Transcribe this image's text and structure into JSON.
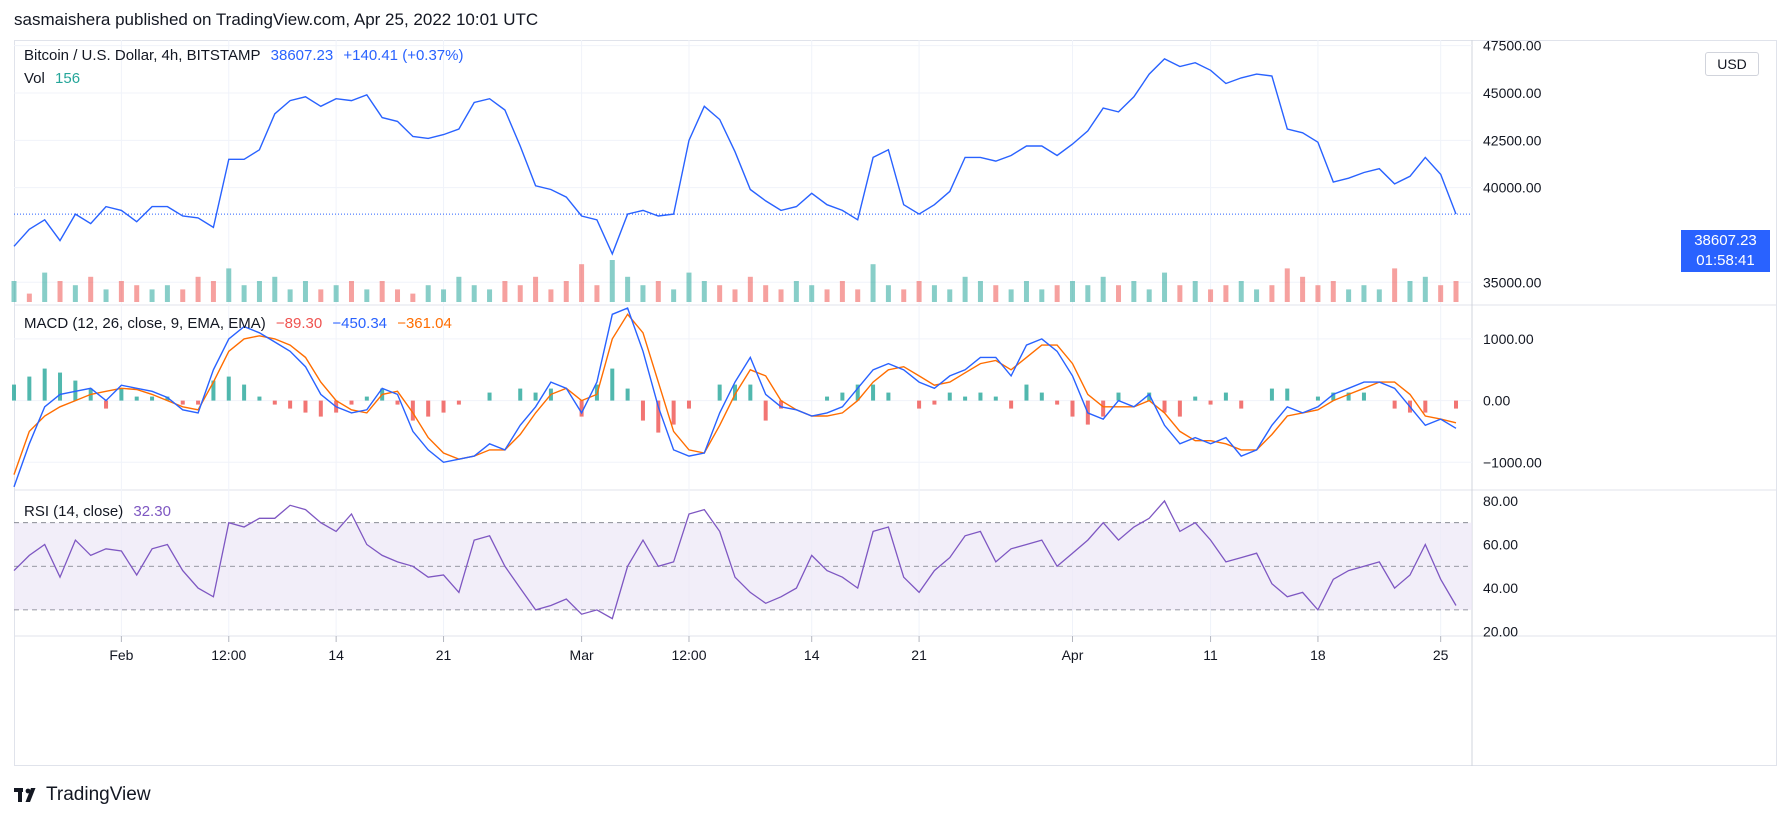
{
  "header": {
    "text": "sasmaishera published on TradingView.com, Apr 25, 2022 10:01 UTC"
  },
  "legend_price": {
    "symbol": "Bitcoin / U.S. Dollar, 4h, BITSTAMP",
    "last": "38607.23",
    "change": "+140.41 (+0.37%)",
    "vol_label": "Vol",
    "vol_value": "156"
  },
  "legend_macd": {
    "label": "MACD (12, 26, close, 9, EMA, EMA)",
    "hist": "−89.30",
    "macd": "−450.34",
    "signal": "−361.04"
  },
  "legend_rsi": {
    "label": "RSI (14, close)",
    "value": "32.30"
  },
  "currency_badge": "USD",
  "price_tag": {
    "price": "38607.23",
    "countdown": "01:58:41"
  },
  "footer": {
    "brand": "TradingView"
  },
  "colors": {
    "price_line": "#2962ff",
    "macd_line": "#2962ff",
    "signal_line": "#ff6d00",
    "hist_up": "#26a69a",
    "hist_down": "#ef5350",
    "rsi_line": "#7e57c2",
    "rsi_band": "#ede7f6",
    "vol_up": "#26a69a",
    "vol_down": "#ef5350",
    "grid": "#f0f3fa",
    "axis_text": "#131722"
  },
  "chart_data": [
    {
      "type": "line",
      "title": "Bitcoin / U.S. Dollar, 4h, BITSTAMP",
      "ylim": [
        33800,
        47800
      ],
      "y_ticks": [
        "35000.00",
        "40000.00",
        "42500.00",
        "45000.00",
        "47500.00"
      ],
      "y_tick_values": [
        35000,
        40000,
        42500,
        45000,
        47500
      ],
      "x_ticks": [
        "Feb",
        "12:00",
        "14",
        "21",
        "Mar",
        "12:00",
        "14",
        "21",
        "Apr",
        "11",
        "18",
        "25"
      ],
      "x_tick_index": [
        7,
        14,
        21,
        28,
        37,
        44,
        52,
        59,
        69,
        78,
        85,
        93
      ],
      "n_points": 95,
      "close": [
        36900,
        37800,
        38300,
        37200,
        38600,
        38100,
        39000,
        38800,
        38200,
        39000,
        39000,
        38500,
        38400,
        37900,
        41500,
        41500,
        42000,
        43900,
        44600,
        44800,
        44300,
        44700,
        44600,
        44900,
        43700,
        43500,
        42700,
        42600,
        42800,
        43100,
        44500,
        44700,
        44100,
        42200,
        40100,
        39900,
        39500,
        38500,
        38300,
        36500,
        38600,
        38800,
        38500,
        38600,
        42500,
        44300,
        43600,
        41900,
        39900,
        39300,
        38800,
        39000,
        39700,
        39100,
        38800,
        38300,
        41600,
        42000,
        39100,
        38600,
        39100,
        39800,
        41600,
        41600,
        41400,
        41700,
        42200,
        42200,
        41700,
        42300,
        43000,
        44200,
        44000,
        44800,
        46000,
        46800,
        46400,
        46600,
        46200,
        45500,
        45800,
        46000,
        45900,
        43100,
        42900,
        42400,
        40300,
        40500,
        40800,
        41000,
        40200,
        40600,
        41600,
        40700,
        38600
      ],
      "volume_rel": [
        0.5,
        0.2,
        0.7,
        0.5,
        0.4,
        0.6,
        0.3,
        0.5,
        0.4,
        0.3,
        0.4,
        0.3,
        0.6,
        0.5,
        0.8,
        0.4,
        0.5,
        0.6,
        0.3,
        0.5,
        0.3,
        0.4,
        0.5,
        0.3,
        0.5,
        0.3,
        0.2,
        0.4,
        0.3,
        0.6,
        0.4,
        0.3,
        0.5,
        0.4,
        0.6,
        0.3,
        0.5,
        0.9,
        0.4,
        1.0,
        0.6,
        0.4,
        0.5,
        0.3,
        0.7,
        0.5,
        0.4,
        0.3,
        0.6,
        0.4,
        0.3,
        0.5,
        0.4,
        0.3,
        0.5,
        0.3,
        0.9,
        0.4,
        0.3,
        0.5,
        0.4,
        0.3,
        0.6,
        0.5,
        0.4,
        0.3,
        0.5,
        0.3,
        0.4,
        0.5,
        0.4,
        0.6,
        0.4,
        0.5,
        0.3,
        0.7,
        0.4,
        0.5,
        0.3,
        0.4,
        0.5,
        0.3,
        0.4,
        0.8,
        0.6,
        0.4,
        0.5,
        0.3,
        0.4,
        0.3,
        0.8,
        0.5,
        0.6,
        0.4,
        0.5
      ],
      "volume_up": [
        1,
        0,
        1,
        0,
        1,
        0,
        1,
        0,
        0,
        1,
        1,
        0,
        0,
        0,
        1,
        1,
        1,
        1,
        1,
        1,
        0,
        1,
        0,
        1,
        0,
        0,
        0,
        1,
        1,
        1,
        1,
        1,
        0,
        0,
        0,
        0,
        0,
        0,
        0,
        1,
        1,
        1,
        0,
        1,
        1,
        1,
        0,
        0,
        0,
        0,
        0,
        1,
        1,
        0,
        0,
        0,
        1,
        1,
        0,
        0,
        1,
        1,
        1,
        1,
        0,
        1,
        1,
        1,
        0,
        1,
        1,
        1,
        0,
        1,
        1,
        1,
        0,
        1,
        0,
        0,
        1,
        1,
        0,
        0,
        0,
        0,
        0,
        1,
        1,
        1,
        0,
        1,
        1,
        0,
        0
      ]
    },
    {
      "type": "line",
      "title": "MACD (12, 26, close, 9, EMA, EMA)",
      "ylim": [
        -1450,
        1550
      ],
      "y_ticks": [
        "1000.00",
        "0.00",
        "−1000.00"
      ],
      "y_tick_values": [
        1000,
        0,
        -1000
      ],
      "macd": [
        -1400,
        -700,
        -100,
        100,
        150,
        200,
        0,
        250,
        200,
        150,
        50,
        -150,
        -200,
        500,
        1000,
        1200,
        1100,
        950,
        800,
        550,
        100,
        -100,
        -200,
        -150,
        200,
        100,
        -500,
        -800,
        -1000,
        -950,
        -900,
        -700,
        -800,
        -400,
        -100,
        300,
        200,
        -200,
        300,
        1400,
        1500,
        800,
        -100,
        -800,
        -900,
        -850,
        -200,
        300,
        700,
        100,
        -100,
        -150,
        -250,
        -200,
        -100,
        200,
        500,
        600,
        500,
        300,
        200,
        400,
        500,
        700,
        700,
        400,
        900,
        1000,
        800,
        400,
        -200,
        -300,
        0,
        -100,
        100,
        -400,
        -700,
        -600,
        -700,
        -600,
        -900,
        -800,
        -400,
        -100,
        -200,
        -100,
        100,
        200,
        300,
        300,
        200,
        -100,
        -400,
        -300,
        -450
      ],
      "signal": [
        -1200,
        -500,
        -250,
        -100,
        0,
        100,
        150,
        200,
        180,
        100,
        0,
        -100,
        -150,
        300,
        800,
        1000,
        1050,
        1000,
        900,
        700,
        300,
        0,
        -150,
        -200,
        100,
        150,
        -200,
        -600,
        -850,
        -950,
        -900,
        -800,
        -800,
        -550,
        -200,
        100,
        200,
        0,
        100,
        1000,
        1400,
        1100,
        300,
        -500,
        -800,
        -850,
        -400,
        100,
        500,
        400,
        0,
        -150,
        -250,
        -250,
        -200,
        0,
        300,
        500,
        550,
        400,
        250,
        300,
        450,
        600,
        650,
        500,
        700,
        900,
        900,
        600,
        100,
        -100,
        -100,
        -100,
        0,
        -200,
        -500,
        -650,
        -650,
        -700,
        -800,
        -800,
        -550,
        -250,
        -200,
        -150,
        0,
        100,
        200,
        300,
        300,
        100,
        -250,
        -300,
        -361
      ],
      "hist_rel": [
        0.4,
        0.6,
        0.8,
        0.7,
        0.5,
        0.3,
        -0.2,
        0.3,
        0.1,
        0.1,
        0.1,
        -0.1,
        -0.1,
        0.5,
        0.6,
        0.4,
        0.1,
        -0.1,
        -0.2,
        -0.3,
        -0.4,
        -0.3,
        -0.1,
        0.1,
        0.3,
        -0.1,
        -0.5,
        -0.4,
        -0.3,
        -0.1,
        0.0,
        0.2,
        0.0,
        0.3,
        0.2,
        0.3,
        0.0,
        -0.4,
        0.4,
        0.8,
        0.3,
        -0.5,
        -0.8,
        -0.6,
        -0.2,
        0.0,
        0.4,
        0.4,
        0.4,
        -0.5,
        -0.2,
        0.0,
        0.0,
        0.1,
        0.2,
        0.4,
        0.4,
        0.2,
        0.0,
        -0.2,
        -0.1,
        0.2,
        0.1,
        0.2,
        0.1,
        -0.2,
        0.4,
        0.2,
        -0.1,
        -0.4,
        -0.6,
        -0.4,
        0.2,
        0.0,
        0.2,
        -0.3,
        -0.4,
        0.1,
        -0.1,
        0.2,
        -0.2,
        0.0,
        0.3,
        0.3,
        0.0,
        0.1,
        0.2,
        0.2,
        0.2,
        0.0,
        -0.2,
        -0.3,
        -0.3,
        0.0,
        -0.2
      ]
    },
    {
      "type": "line",
      "title": "RSI (14, close)",
      "ylim": [
        18,
        85
      ],
      "y_ticks": [
        "80.00",
        "60.00",
        "40.00",
        "20.00"
      ],
      "y_tick_values": [
        80,
        60,
        40,
        20
      ],
      "band": [
        30,
        70
      ],
      "midline": 50,
      "rsi": [
        48,
        55,
        60,
        45,
        62,
        55,
        58,
        57,
        46,
        58,
        60,
        48,
        40,
        36,
        70,
        68,
        72,
        72,
        78,
        76,
        70,
        66,
        74,
        60,
        55,
        52,
        50,
        45,
        46,
        38,
        62,
        64,
        50,
        40,
        30,
        32,
        35,
        28,
        30,
        26,
        50,
        62,
        50,
        52,
        74,
        76,
        66,
        45,
        38,
        33,
        36,
        40,
        55,
        48,
        45,
        40,
        66,
        68,
        45,
        38,
        48,
        54,
        64,
        66,
        52,
        58,
        60,
        62,
        50,
        56,
        62,
        70,
        62,
        68,
        72,
        80,
        66,
        70,
        62,
        52,
        54,
        56,
        42,
        36,
        38,
        30,
        44,
        48,
        50,
        52,
        40,
        46,
        60,
        44,
        32
      ]
    }
  ]
}
